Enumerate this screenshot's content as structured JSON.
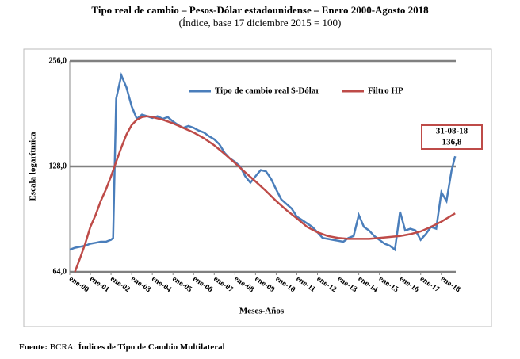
{
  "chart_data": {
    "type": "line",
    "title": "Tipo real de cambio – Pesos-Dólar estadounidense – Enero 2000-Agosto 2018",
    "subtitle": "(Índice, base 17 diciembre 2015 = 100)",
    "x_label": "Meses-Años",
    "y_label": "Escala logarítmica",
    "log_scale": true,
    "grid": true,
    "legend": "top",
    "xlim": [
      2000,
      2018.7
    ],
    "xticks": [
      {
        "value": 2000,
        "label": "ene-00"
      },
      {
        "value": 2001,
        "label": "ene-01"
      },
      {
        "value": 2002,
        "label": "ene-02"
      },
      {
        "value": 2003,
        "label": "ene-03"
      },
      {
        "value": 2004,
        "label": "ene-04"
      },
      {
        "value": 2005,
        "label": "ene-05"
      },
      {
        "value": 2006,
        "label": "ene-06"
      },
      {
        "value": 2007,
        "label": "ene-07"
      },
      {
        "value": 2008,
        "label": "ene-08"
      },
      {
        "value": 2009,
        "label": "ene-09"
      },
      {
        "value": 2010,
        "label": "ene-10"
      },
      {
        "value": 2011,
        "label": "ene-11"
      },
      {
        "value": 2012,
        "label": "ene-12"
      },
      {
        "value": 2013,
        "label": "ene-13"
      },
      {
        "value": 2014,
        "label": "ene-14"
      },
      {
        "value": 2015,
        "label": "ene-15"
      },
      {
        "value": 2016,
        "label": "ene-16"
      },
      {
        "value": 2017,
        "label": "ene-17"
      },
      {
        "value": 2018,
        "label": "ene-18"
      }
    ],
    "ylim": [
      64,
      256
    ],
    "yticks": [
      {
        "value": 64,
        "label": "64,0"
      },
      {
        "value": 128,
        "label": "128,0"
      },
      {
        "value": 256,
        "label": "256,0"
      }
    ],
    "series": [
      {
        "name": "Tipo de cambio real $-Dólar",
        "color": "#4a7ebb",
        "x": [
          2000,
          2000.25,
          2000.5,
          2000.75,
          2001,
          2001.25,
          2001.5,
          2001.75,
          2002,
          2002.1,
          2002.25,
          2002.5,
          2002.75,
          2003,
          2003.25,
          2003.5,
          2003.75,
          2004,
          2004.25,
          2004.5,
          2004.75,
          2005,
          2005.25,
          2005.5,
          2005.75,
          2006,
          2006.25,
          2006.5,
          2006.75,
          2007,
          2007.25,
          2007.5,
          2007.75,
          2008,
          2008.25,
          2008.5,
          2008.75,
          2009,
          2009.25,
          2009.5,
          2009.75,
          2010,
          2010.25,
          2010.5,
          2010.75,
          2011,
          2011.25,
          2011.5,
          2011.75,
          2012,
          2012.25,
          2012.5,
          2012.75,
          2013,
          2013.25,
          2013.5,
          2013.75,
          2014,
          2014.25,
          2014.5,
          2014.75,
          2015,
          2015.25,
          2015.5,
          2015.75,
          2016,
          2016.25,
          2016.5,
          2016.75,
          2017,
          2017.25,
          2017.5,
          2017.75,
          2018,
          2018.25,
          2018.5,
          2018.67
        ],
        "values": [
          74,
          75,
          75.5,
          76,
          77,
          77.5,
          78,
          78,
          79,
          80,
          200,
          233,
          215,
          190,
          175,
          180,
          178,
          176,
          178,
          175,
          177,
          172,
          168,
          165,
          167,
          165,
          162,
          160,
          156,
          153,
          148,
          140,
          135,
          132,
          128,
          120,
          115,
          120,
          125,
          124,
          118,
          110,
          103,
          100,
          97,
          92,
          90,
          88,
          86,
          83,
          80,
          79.5,
          79,
          78.5,
          78,
          80,
          81,
          93,
          86,
          84,
          81,
          79,
          77,
          76,
          74,
          95,
          84,
          85,
          84,
          79,
          82,
          86,
          85,
          108,
          102,
          125,
          136.8
        ]
      },
      {
        "name": "Filtro HP",
        "color": "#be4b48",
        "x": [
          2000.25,
          2000.5,
          2000.75,
          2001,
          2001.25,
          2001.5,
          2001.75,
          2002,
          2002.25,
          2002.5,
          2002.75,
          2003,
          2003.25,
          2003.5,
          2003.75,
          2004,
          2004.5,
          2005,
          2005.5,
          2006,
          2006.5,
          2007,
          2007.5,
          2008,
          2008.5,
          2009,
          2009.5,
          2010,
          2010.5,
          2011,
          2011.5,
          2012,
          2012.5,
          2013,
          2013.5,
          2014,
          2014.5,
          2015,
          2015.5,
          2016,
          2016.5,
          2017,
          2017.5,
          2018,
          2018.67
        ],
        "values": [
          64,
          70,
          77,
          86,
          93,
          102,
          110,
          120,
          132,
          145,
          158,
          168,
          174,
          177,
          178,
          177,
          174,
          170,
          165,
          160,
          154,
          147,
          139,
          131,
          123,
          116,
          109,
          102,
          96,
          91,
          86,
          83,
          81,
          80,
          79.5,
          79.5,
          79.5,
          80,
          80.5,
          81,
          82,
          83.5,
          86,
          89,
          94
        ]
      }
    ],
    "annotations": [
      "31-08-18",
      "136,8"
    ],
    "source": [
      "Fuente:",
      "BCRA:",
      "Índices de Tipo de Cambio Multilateral"
    ]
  }
}
